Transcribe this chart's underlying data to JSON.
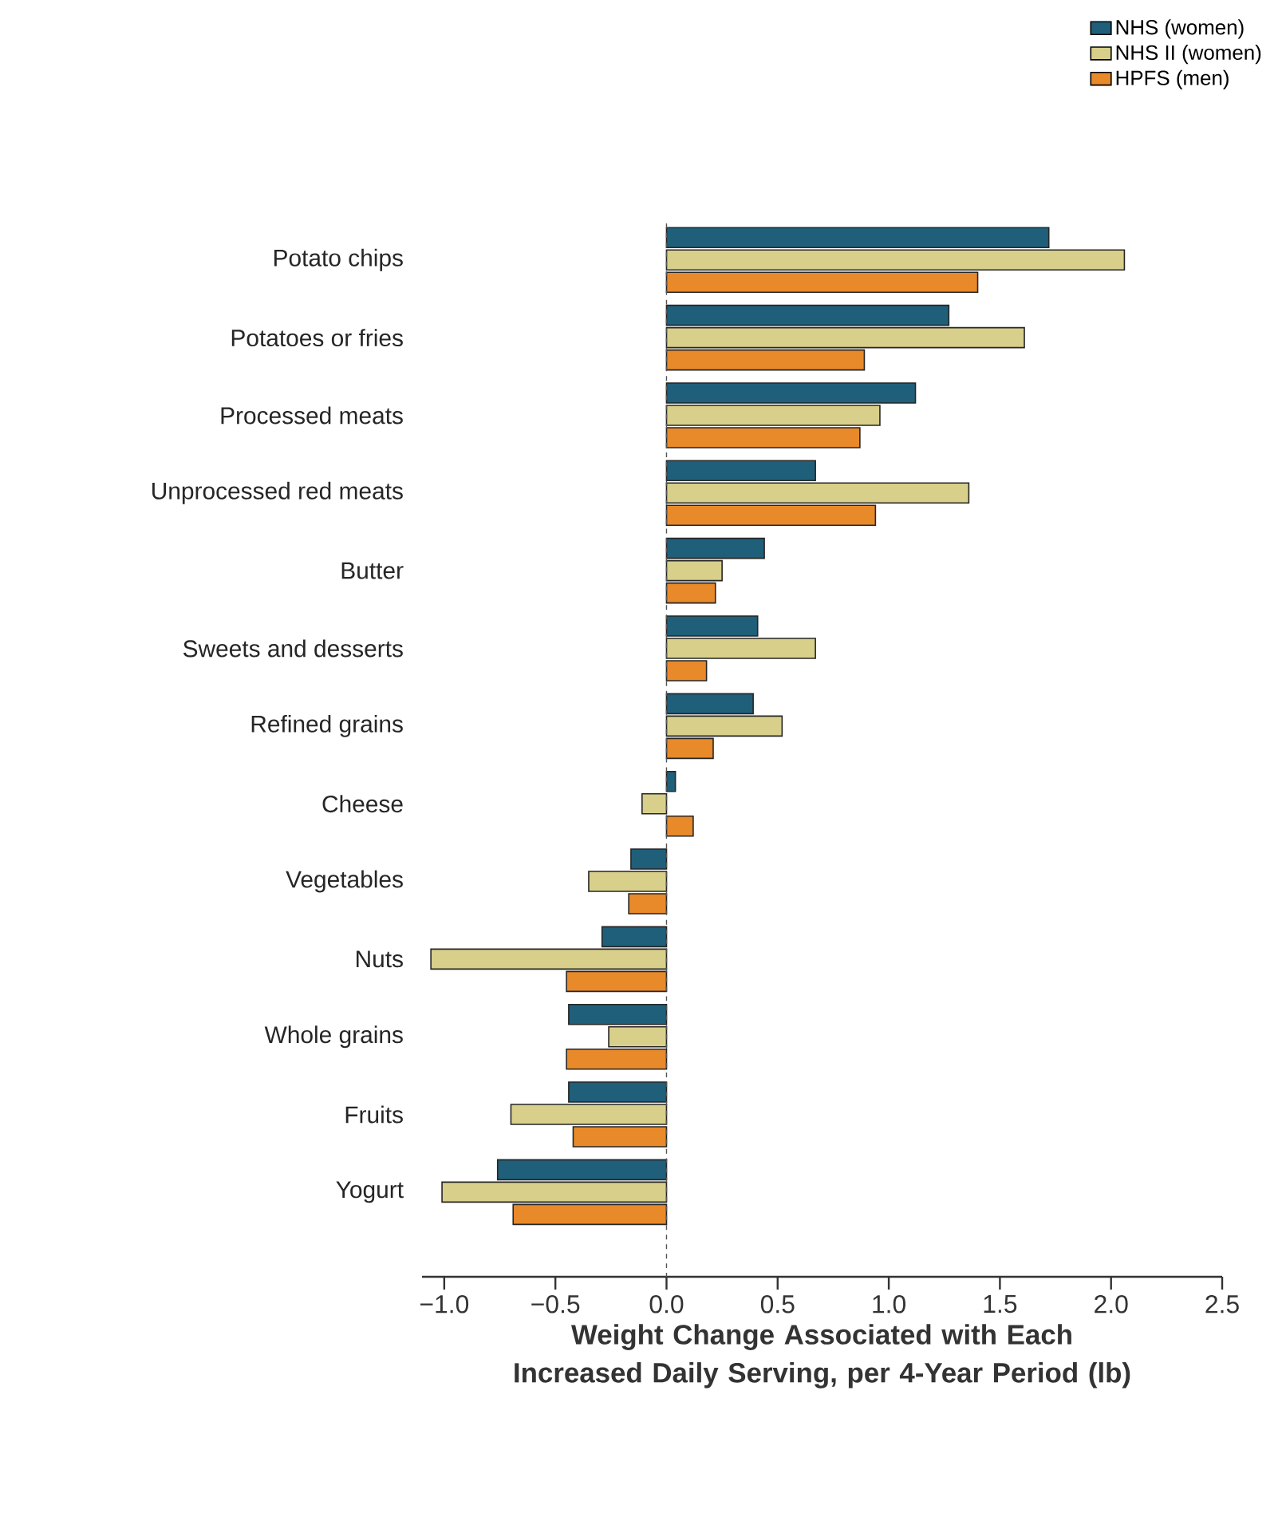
{
  "chart_data": {
    "type": "bar",
    "orientation": "horizontal",
    "xlabel": "Weight Change Associated with Each Increased Daily Serving, per 4-Year Period (lb)",
    "categories": [
      "Potato chips",
      "Potatoes or fries",
      "Processed meats",
      "Unprocessed red meats",
      "Butter",
      "Sweets and desserts",
      "Refined grains",
      "Cheese",
      "Vegetables",
      "Nuts",
      "Whole grains",
      "Fruits",
      "Yogurt"
    ],
    "series": [
      {
        "name": "NHS (women)",
        "color": "#1f5f7a",
        "values": [
          1.72,
          1.27,
          1.12,
          0.67,
          0.44,
          0.41,
          0.39,
          0.04,
          -0.16,
          -0.29,
          -0.44,
          -0.44,
          -0.76
        ]
      },
      {
        "name": "NHS II (women)",
        "color": "#d8cf8a",
        "values": [
          2.06,
          1.61,
          0.96,
          1.36,
          0.25,
          0.67,
          0.52,
          -0.11,
          -0.35,
          -1.06,
          -0.26,
          -0.7,
          -1.01
        ]
      },
      {
        "name": "HPFS (men)",
        "color": "#e8892a",
        "values": [
          1.4,
          0.89,
          0.87,
          0.94,
          0.22,
          0.18,
          0.21,
          0.12,
          -0.17,
          -0.45,
          -0.45,
          -0.42,
          -0.69
        ]
      }
    ],
    "xlim": [
      -1.1,
      2.5
    ],
    "xticks": [
      {
        "value": -1.0,
        "label": "−1.0"
      },
      {
        "value": -0.5,
        "label": "−0.5"
      },
      {
        "value": 0.0,
        "label": "0.0"
      },
      {
        "value": 0.5,
        "label": "0.5"
      },
      {
        "value": 1.0,
        "label": "1.0"
      },
      {
        "value": 1.5,
        "label": "1.5"
      },
      {
        "value": 2.0,
        "label": "2.0"
      },
      {
        "value": 2.5,
        "label": "2.5"
      }
    ],
    "ref_lines": [
      {
        "axis": "x",
        "value": 0,
        "line_style": "dashed",
        "color": "#555555"
      }
    ],
    "legend": "top right",
    "grid": false
  }
}
